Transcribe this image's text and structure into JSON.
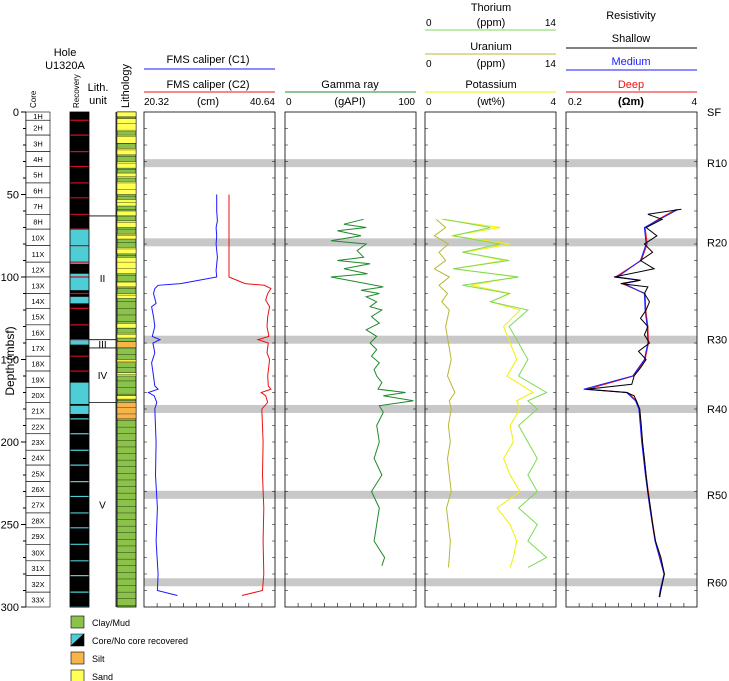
{
  "chart_data": {
    "type": "line",
    "hole": [
      "Hole",
      "U1320A"
    ],
    "y_axis": {
      "label": "Depth (mbsf)",
      "min": 0,
      "max": 300,
      "ticks": [
        0,
        50,
        100,
        150,
        200,
        250,
        300
      ]
    },
    "column_headers": {
      "core": "Core",
      "recovery": "Recovery",
      "lith_unit": [
        "Lith.",
        "unit"
      ],
      "lithology": "Lithology"
    },
    "cores": [
      {
        "label": "1H",
        "top": 0,
        "bottom": 5
      },
      {
        "label": "2H",
        "top": 5,
        "bottom": 14
      },
      {
        "label": "3H",
        "top": 14,
        "bottom": 24
      },
      {
        "label": "4H",
        "top": 24,
        "bottom": 33
      },
      {
        "label": "5H",
        "top": 33,
        "bottom": 43
      },
      {
        "label": "6H",
        "top": 43,
        "bottom": 52
      },
      {
        "label": "7H",
        "top": 52,
        "bottom": 62
      },
      {
        "label": "8H",
        "top": 62,
        "bottom": 71
      },
      {
        "label": "10X",
        "top": 71,
        "bottom": 81
      },
      {
        "label": "11X",
        "top": 81,
        "bottom": 91
      },
      {
        "label": "12X",
        "top": 91,
        "bottom": 100
      },
      {
        "label": "13X",
        "top": 100,
        "bottom": 110
      },
      {
        "label": "14X",
        "top": 110,
        "bottom": 119
      },
      {
        "label": "15X",
        "top": 119,
        "bottom": 129
      },
      {
        "label": "16X",
        "top": 129,
        "bottom": 138
      },
      {
        "label": "17X",
        "top": 138,
        "bottom": 148
      },
      {
        "label": "18X",
        "top": 148,
        "bottom": 157
      },
      {
        "label": "19X",
        "top": 157,
        "bottom": 167
      },
      {
        "label": "20X",
        "top": 167,
        "bottom": 176
      },
      {
        "label": "21X",
        "top": 176,
        "bottom": 186
      },
      {
        "label": "22X",
        "top": 186,
        "bottom": 195
      },
      {
        "label": "23X",
        "top": 195,
        "bottom": 205
      },
      {
        "label": "24X",
        "top": 205,
        "bottom": 214
      },
      {
        "label": "25X",
        "top": 214,
        "bottom": 224
      },
      {
        "label": "26X",
        "top": 224,
        "bottom": 233
      },
      {
        "label": "27X",
        "top": 233,
        "bottom": 243
      },
      {
        "label": "28X",
        "top": 243,
        "bottom": 252
      },
      {
        "label": "29X",
        "top": 252,
        "bottom": 262
      },
      {
        "label": "30X",
        "top": 262,
        "bottom": 272
      },
      {
        "label": "31X",
        "top": 272,
        "bottom": 281
      },
      {
        "label": "32X",
        "top": 281,
        "bottom": 291
      },
      {
        "label": "33X",
        "top": 291,
        "bottom": 300
      }
    ],
    "recovery_intervals": [
      {
        "top": 0,
        "bottom": 300,
        "type": "core"
      },
      {
        "top": 71,
        "bottom": 92,
        "type": "no_core"
      },
      {
        "top": 98,
        "bottom": 108,
        "type": "no_core"
      },
      {
        "top": 112,
        "bottom": 116,
        "type": "no_core"
      },
      {
        "top": 138,
        "bottom": 141,
        "type": "no_core"
      },
      {
        "top": 164,
        "bottom": 177,
        "type": "no_core"
      },
      {
        "top": 178,
        "bottom": 183,
        "type": "no_core"
      }
    ],
    "lith_units": [
      {
        "label": "II",
        "top": 63,
        "bottom": 138
      },
      {
        "label": "III",
        "top": 138,
        "bottom": 143
      },
      {
        "label": "IV",
        "top": 143,
        "bottom": 176
      },
      {
        "label": "V",
        "top": 176,
        "bottom": 300
      }
    ],
    "lithology_intervals": [
      {
        "top": 0,
        "bottom": 3,
        "type": "sand"
      },
      {
        "top": 4,
        "bottom": 12,
        "type": "sand"
      },
      {
        "top": 14,
        "bottom": 19,
        "type": "sand"
      },
      {
        "top": 22,
        "bottom": 26,
        "type": "sand"
      },
      {
        "top": 30,
        "bottom": 34,
        "type": "sand"
      },
      {
        "top": 37,
        "bottom": 40,
        "type": "sand"
      },
      {
        "top": 42,
        "bottom": 50,
        "type": "sand"
      },
      {
        "top": 53,
        "bottom": 57,
        "type": "sand"
      },
      {
        "top": 60,
        "bottom": 63,
        "type": "sand"
      },
      {
        "top": 66,
        "bottom": 70,
        "type": "sand"
      },
      {
        "top": 74,
        "bottom": 77,
        "type": "sand"
      },
      {
        "top": 82,
        "bottom": 86,
        "type": "sand"
      },
      {
        "top": 88,
        "bottom": 98,
        "type": "sand"
      },
      {
        "top": 103,
        "bottom": 106,
        "type": "sand"
      },
      {
        "top": 110,
        "bottom": 113,
        "type": "sand"
      },
      {
        "top": 128,
        "bottom": 131,
        "type": "sand"
      },
      {
        "top": 134,
        "bottom": 137,
        "type": "sand"
      },
      {
        "top": 139,
        "bottom": 143,
        "type": "silt"
      },
      {
        "top": 150,
        "bottom": 152,
        "type": "sand"
      },
      {
        "top": 158,
        "bottom": 160,
        "type": "sand"
      },
      {
        "top": 172,
        "bottom": 174,
        "type": "sand"
      },
      {
        "top": 176,
        "bottom": 186,
        "type": "silt"
      }
    ],
    "shaded_horizons": [
      {
        "label": "SF",
        "depth": 0,
        "shaded": false
      },
      {
        "label": "R10",
        "depth": 31,
        "shaded": true
      },
      {
        "label": "R20",
        "depth": 79,
        "shaded": true
      },
      {
        "label": "R30",
        "depth": 138,
        "shaded": true
      },
      {
        "label": "R40",
        "depth": 180,
        "shaded": true
      },
      {
        "label": "R50",
        "depth": 232,
        "shaded": true
      },
      {
        "label": "R60",
        "depth": 285,
        "shaded": true
      }
    ],
    "track1": {
      "curves": [
        {
          "name": "FMS caliper (C1)",
          "color": "#1a1aff"
        },
        {
          "name": "FMS caliper (C2)",
          "color": "#ee1111"
        }
      ],
      "scale": {
        "min": 20.32,
        "max": 40.64,
        "unit": "(cm)",
        "min_label": "20.32",
        "max_label": "40.64"
      },
      "c1": {
        "depth": [
          50,
          60,
          66,
          70,
          75,
          80,
          88,
          96,
          100,
          104,
          105,
          107,
          110,
          116,
          118,
          124,
          130,
          136,
          138,
          140,
          146,
          152,
          160,
          166,
          168,
          170,
          172,
          176,
          180,
          200,
          220,
          240,
          260,
          280,
          290,
          293
        ],
        "value": [
          31.6,
          31.6,
          31.7,
          31.5,
          31.6,
          31.5,
          31.7,
          31.5,
          31.6,
          26,
          22.5,
          22,
          21.8,
          22.2,
          21.5,
          21.8,
          22,
          21.6,
          22.8,
          21.7,
          22,
          21.5,
          21.8,
          22,
          22.5,
          21,
          21.9,
          22.3,
          22,
          22.2,
          22.1,
          22.4,
          22.2,
          22.5,
          22.4,
          25.5
        ]
      },
      "c2": {
        "depth": [
          50,
          60,
          70,
          80,
          90,
          100,
          104,
          105,
          107,
          110,
          114,
          118,
          124,
          130,
          136,
          138,
          140,
          146,
          150,
          160,
          166,
          168,
          170,
          172,
          176,
          180,
          200,
          220,
          240,
          260,
          280,
          290,
          293
        ],
        "value": [
          33.5,
          33.5,
          33.5,
          33.5,
          33.5,
          33.5,
          36,
          39,
          40,
          39.5,
          39.2,
          39.8,
          39.5,
          39.4,
          39.7,
          38,
          39.6,
          39.4,
          39.8,
          39.5,
          39.6,
          40,
          38.5,
          39.2,
          39.5,
          38.6,
          38.8,
          38.7,
          38.9,
          38.8,
          38.9,
          38.7,
          35.5
        ]
      }
    },
    "track2": {
      "curves": [
        {
          "name": "Gamma ray",
          "color": "#1f8a2a"
        }
      ],
      "scale": {
        "min": 0,
        "max": 100,
        "unit": "(gAPI)",
        "min_label": "0",
        "max_label": "100"
      },
      "gr": {
        "depth": [
          65,
          68,
          70,
          72,
          75,
          78,
          80,
          84,
          88,
          90,
          92,
          95,
          98,
          100,
          103,
          106,
          108,
          110,
          112,
          115,
          118,
          120,
          124,
          128,
          132,
          136,
          140,
          144,
          148,
          152,
          156,
          160,
          164,
          168,
          170,
          172,
          175,
          178,
          182,
          190,
          200,
          210,
          220,
          230,
          240,
          250,
          260,
          270,
          275
        ],
        "value": [
          60,
          45,
          62,
          40,
          58,
          35,
          62,
          55,
          60,
          40,
          65,
          45,
          63,
          35,
          55,
          75,
          58,
          72,
          62,
          70,
          65,
          74,
          66,
          72,
          62,
          70,
          65,
          70,
          66,
          72,
          68,
          70,
          74,
          71,
          92,
          75,
          98,
          72,
          75,
          70,
          72,
          68,
          74,
          66,
          72,
          70,
          68,
          76,
          74
        ]
      }
    },
    "track3": {
      "curves": [
        {
          "name": "Thorium",
          "color": "#7ed957"
        },
        {
          "name": "Uranium",
          "color": "#b8b832"
        },
        {
          "name": "Potassium",
          "color": "#f0f000"
        }
      ],
      "scales": [
        {
          "name": "Thorium",
          "min": 0,
          "max": 14,
          "unit": "(ppm)",
          "min_label": "0",
          "max_label": "14"
        },
        {
          "name": "Uranium",
          "min": 0,
          "max": 14,
          "unit": "(ppm)",
          "min_label": "0",
          "max_label": "14"
        },
        {
          "name": "Potassium",
          "min": 0,
          "max": 4,
          "unit": "(wt%)",
          "min_label": "0",
          "max_label": "4"
        }
      ],
      "thorium": {
        "depth": [
          65,
          70,
          75,
          80,
          85,
          90,
          95,
          100,
          105,
          110,
          115,
          120,
          130,
          140,
          150,
          160,
          170,
          175,
          180,
          190,
          200,
          210,
          220,
          230,
          240,
          250,
          260,
          270,
          276
        ],
        "value": [
          2,
          7,
          3,
          8,
          4,
          9,
          3,
          10,
          4,
          9,
          7,
          11,
          9,
          10,
          11,
          10,
          13,
          11,
          12,
          10,
          11,
          12,
          11,
          12,
          10,
          12,
          11,
          13,
          11
        ]
      },
      "uranium": {
        "depth": [
          65,
          70,
          75,
          80,
          85,
          90,
          95,
          100,
          105,
          110,
          115,
          120,
          130,
          140,
          150,
          160,
          170,
          175,
          180,
          190,
          200,
          210,
          220,
          230,
          240,
          250,
          260,
          270,
          276
        ],
        "value": [
          1.2,
          2.2,
          1,
          2.5,
          1.5,
          2.2,
          1,
          2.6,
          1.5,
          2.4,
          1.8,
          2.6,
          2.2,
          2.5,
          2.8,
          2.4,
          3.2,
          2.6,
          2.8,
          2.5,
          2.7,
          2.4,
          2.6,
          2.8,
          2.3,
          2.5,
          2.7,
          2.6,
          2.5
        ]
      },
      "potassium": {
        "depth": [
          65,
          70,
          75,
          80,
          85,
          90,
          95,
          100,
          105,
          110,
          115,
          120,
          130,
          140,
          150,
          160,
          170,
          175,
          180,
          190,
          200,
          210,
          220,
          230,
          240,
          250,
          260,
          270,
          276
        ],
        "value": [
          0.5,
          2.3,
          0.8,
          2.6,
          1.2,
          2.4,
          0.9,
          2.8,
          1.4,
          2.6,
          2,
          2.9,
          2.4,
          2.6,
          2.8,
          2.5,
          3.3,
          2.8,
          2.9,
          2.6,
          2.7,
          2.4,
          2.6,
          2.9,
          2.2,
          2.6,
          2.8,
          2.7,
          2.6
        ]
      }
    },
    "track4": {
      "title": "Resistivity",
      "curves": [
        {
          "name": "Shallow",
          "color": "#000000"
        },
        {
          "name": "Medium",
          "color": "#1a1aff"
        },
        {
          "name": "Deep",
          "color": "#ee1111"
        }
      ],
      "scale": {
        "min": 0.2,
        "max": 4,
        "unit": "(Ωm)",
        "log": true,
        "min_label": "0.2",
        "max_label": "4"
      },
      "shallow": {
        "depth": [
          59,
          62,
          65,
          70,
          75,
          80,
          85,
          90,
          95,
          100,
          102,
          104,
          106,
          110,
          115,
          120,
          125,
          130,
          135,
          140,
          145,
          150,
          155,
          160,
          165,
          168,
          170,
          172,
          175,
          180,
          190,
          200,
          210,
          220,
          230,
          240,
          250,
          260,
          270,
          280,
          290,
          294
        ],
        "value": [
          2.8,
          1.3,
          1.8,
          1.25,
          1.6,
          1.2,
          1.45,
          1.1,
          1.5,
          0.6,
          1.1,
          0.7,
          1.3,
          1.2,
          1.35,
          1.25,
          1.1,
          1.3,
          1.2,
          1.35,
          1.05,
          1.25,
          1.1,
          0.95,
          0.9,
          0.32,
          0.8,
          0.95,
          1.0,
          1.08,
          1.12,
          1.15,
          1.2,
          1.25,
          1.3,
          1.38,
          1.45,
          1.55,
          1.75,
          1.9,
          1.75,
          1.7
        ]
      },
      "medium": {
        "depth": [
          59,
          65,
          70,
          80,
          90,
          100,
          102,
          104,
          110,
          120,
          130,
          140,
          150,
          160,
          168,
          170,
          175,
          180,
          200,
          220,
          240,
          260,
          280,
          290,
          294
        ],
        "value": [
          2.6,
          1.7,
          1.2,
          1.25,
          1.1,
          0.65,
          1.1,
          0.75,
          1.2,
          1.22,
          1.28,
          1.3,
          1.2,
          0.92,
          0.3,
          0.8,
          0.98,
          1.06,
          1.13,
          1.23,
          1.36,
          1.53,
          1.88,
          1.72,
          1.68
        ]
      },
      "deep": {
        "depth": [
          59,
          65,
          70,
          80,
          90,
          100,
          102,
          104,
          110,
          120,
          130,
          140,
          150,
          160,
          168,
          170,
          175,
          180,
          200,
          220,
          240,
          260,
          280,
          290,
          294
        ],
        "value": [
          2.5,
          1.65,
          1.22,
          1.28,
          1.12,
          0.62,
          1.08,
          0.72,
          1.22,
          1.24,
          1.3,
          1.32,
          1.22,
          0.94,
          0.33,
          0.82,
          1.0,
          1.08,
          1.15,
          1.25,
          1.38,
          1.55,
          1.9,
          1.74,
          1.7
        ]
      }
    },
    "legend": [
      {
        "label": "Clay/Mud",
        "color": "#8bc34a"
      },
      {
        "label": "Core/No core recovered",
        "color": "#000000",
        "color2": "#4ecdd6"
      },
      {
        "label": "Silt",
        "color": "#f7b44a"
      },
      {
        "label": "Sand",
        "color": "#ffff55"
      }
    ]
  }
}
